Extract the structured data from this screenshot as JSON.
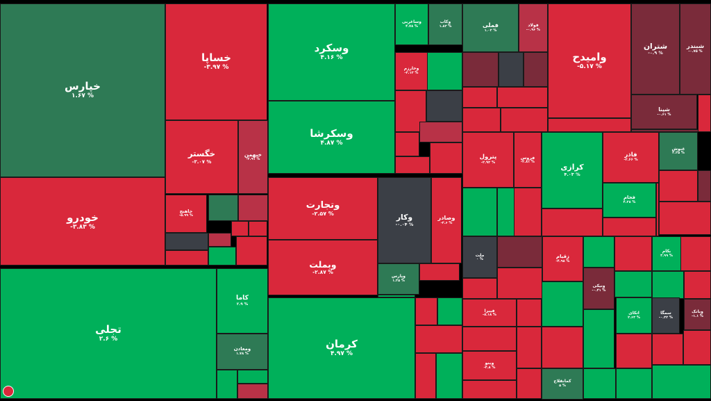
{
  "colors": {
    "strong_up": "#00b05a",
    "up": "#2e7a55",
    "neutral": "#3b3f46",
    "down": "#b83247",
    "strong_down": "#d9283b",
    "mild_down": "#7a2b3a"
  },
  "chart_data": {
    "type": "heatmap",
    "title": "",
    "tiles": [
      {
        "name": "خپارس",
        "change": "۱.۶۷ %",
        "color": "up"
      },
      {
        "name": "خساپا",
        "change": "-۳.۹۷ %",
        "color": "strong_down"
      },
      {
        "name": "خگستر",
        "change": "-۳.۰۷ %",
        "color": "strong_down"
      },
      {
        "name": "خودرو",
        "change": "-۳.۸۳ %",
        "color": "strong_down"
      },
      {
        "name": "تجلی",
        "change": "۲.۶ %",
        "color": "strong_up"
      },
      {
        "name": "کاما",
        "change": "۲.۹ %",
        "color": "strong_up"
      },
      {
        "name": "ومعادن",
        "change": "۱.۷۸ %",
        "color": "up"
      },
      {
        "name": "وسکرد",
        "change": "۴.۱۶ %",
        "color": "strong_up"
      },
      {
        "name": "وسکرشا",
        "change": "۴.۸۷ %",
        "color": "strong_up"
      },
      {
        "name": "وتجارت",
        "change": "-۲.۵۷ %",
        "color": "strong_down"
      },
      {
        "name": "وکار",
        "change": "-۰.۰۴ %",
        "color": "neutral"
      },
      {
        "name": "وبملت",
        "change": "-۲.۸۷ %",
        "color": "strong_down"
      },
      {
        "name": "وصادر",
        "change": "-۳.۶ %",
        "color": "strong_down"
      },
      {
        "name": "وپارس",
        "change": "۱.۳۵ %",
        "color": "up"
      },
      {
        "name": "کرمان",
        "change": "۴.۹۷ %",
        "color": "strong_up"
      },
      {
        "name": "فملی",
        "change": "۱.۰۲ %",
        "color": "up"
      },
      {
        "name": "فولاد",
        "change": "-۰.۹۶ %",
        "color": "down"
      },
      {
        "name": "وامیدح",
        "change": "-۵.۱۷ %",
        "color": "strong_down"
      },
      {
        "name": "شتران",
        "change": "-۰.۹ %",
        "color": "mild_down"
      },
      {
        "name": "شبندر",
        "change": "-۰.۷۵ %",
        "color": "mild_down"
      },
      {
        "name": "شپنا",
        "change": "-۰.۶۱ %",
        "color": "mild_down"
      },
      {
        "name": "پترول",
        "change": "-۲.۹۲ %",
        "color": "strong_down"
      },
      {
        "name": "کرازی",
        "change": "۴.۰۳ %",
        "color": "strong_up"
      },
      {
        "name": "فاذر",
        "change": "-۲.۶۶ %",
        "color": "strong_down"
      },
      {
        "name": "غنوش",
        "change": "۲.۲۵ %",
        "color": "up"
      },
      {
        "name": "فجام",
        "change": "۴.۳۸ %",
        "color": "strong_up"
      },
      {
        "name": "زقیام",
        "change": "-۴.۹۸ %",
        "color": "strong_down"
      },
      {
        "name": "ملت",
        "change": "۰ %",
        "color": "neutral"
      },
      {
        "name": "وکاب",
        "change": "۱.۸۳ %",
        "color": "up"
      },
      {
        "name": "وساغربی",
        "change": "۴.۷۸ %",
        "color": "strong_up"
      },
      {
        "name": "خبهمن",
        "change": "-۲.۹۱ %",
        "color": "down"
      },
      {
        "name": "خاهنج",
        "change": "-۵.۹۹ %",
        "color": "strong_down"
      },
      {
        "name": "وخارزم",
        "change": "-۳.۱۳ %",
        "color": "strong_down"
      },
      {
        "name": "فیبرا",
        "change": "-۸.۱۸ %",
        "color": "strong_down"
      },
      {
        "name": "فروس",
        "change": "-۲.۸۱ %",
        "color": "strong_down"
      },
      {
        "name": "وبنو",
        "change": "-۴.۸ %",
        "color": "strong_down"
      },
      {
        "name": "ونیکی",
        "change": "-۰.۴۱ %",
        "color": "mild_down"
      },
      {
        "name": "کمانقلاج",
        "change": "۵ %",
        "color": "up"
      },
      {
        "name": "سمگا",
        "change": "-۰.۳۲ %",
        "color": "neutral"
      },
      {
        "name": "اتکای",
        "change": "۲.۶۳ %",
        "color": "strong_up"
      },
      {
        "name": "بکام",
        "change": "۳.۹۹ %",
        "color": "strong_up"
      },
      {
        "name": "وبانک",
        "change": "-۱.۱ %",
        "color": "mild_down"
      }
    ]
  }
}
